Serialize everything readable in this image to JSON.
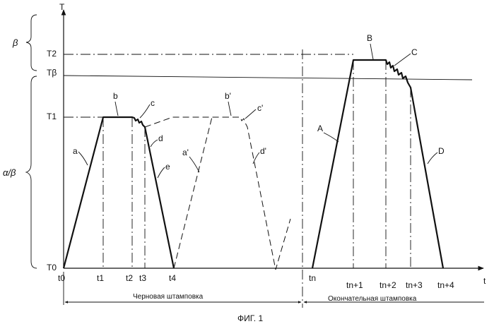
{
  "figure_caption": "ФИГ. 1",
  "axes": {
    "y_label": "T",
    "x_label": "t"
  },
  "temperature_levels": {
    "T2": "T2",
    "Tbeta": "Tβ",
    "T1": "T1",
    "T0": "T0"
  },
  "time_ticks": {
    "t0": "t0",
    "t1": "t1",
    "t2": "t2",
    "t3": "t3",
    "t4": "t4",
    "tn": "tn",
    "tn1": "tn+1",
    "tn2": "tn+2",
    "tn3": "tn+3",
    "tn4": "tn+4"
  },
  "curve_labels": {
    "a": "a",
    "b": "b",
    "c": "c",
    "d": "d",
    "e": "e",
    "a_prime": "a'",
    "b_prime": "b'",
    "c_prime": "c'",
    "d_prime": "d'",
    "A": "A",
    "B": "B",
    "C": "C",
    "D": "D"
  },
  "brace_labels": {
    "beta": "β",
    "alpha_beta": "α/β"
  },
  "stage_labels": {
    "rough": "Черновая штамповка",
    "final": "Окончательная штамповка"
  }
}
